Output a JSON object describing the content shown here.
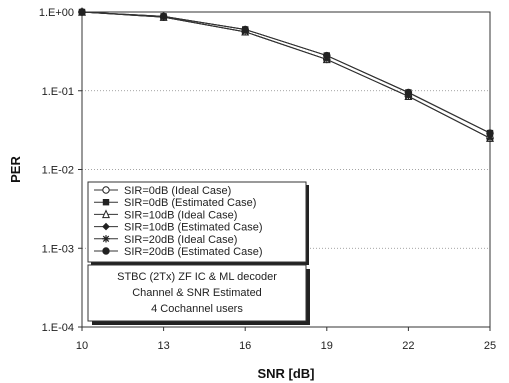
{
  "chart_data": {
    "type": "line",
    "title": "",
    "xlabel": "SNR [dB]",
    "ylabel": "PER",
    "x": [
      10,
      13,
      16,
      19,
      22,
      25
    ],
    "xlim": [
      10,
      25
    ],
    "x_ticks": [
      "10",
      "13",
      "16",
      "19",
      "22",
      "25"
    ],
    "ylim": [
      0.0001,
      1
    ],
    "y_scale": "log",
    "y_ticks": [
      "1.E+00",
      "1.E-01",
      "1.E-02",
      "1.E-03",
      "1.E-04"
    ],
    "grid": "horizontal-dotted",
    "legend_position": "lower-left",
    "series": [
      {
        "name": "SIR=0dB (Ideal Case)",
        "marker": "circle-open",
        "values": [
          1.0,
          0.86,
          0.56,
          0.25,
          0.085,
          0.025
        ]
      },
      {
        "name": "SIR=0dB (Estimated Case)",
        "marker": "square-filled",
        "values": [
          1.0,
          0.88,
          0.6,
          0.28,
          0.095,
          0.029
        ]
      },
      {
        "name": "SIR=10dB (Ideal Case)",
        "marker": "triangle-open",
        "values": [
          1.0,
          0.86,
          0.56,
          0.25,
          0.085,
          0.025
        ]
      },
      {
        "name": "SIR=10dB (Estimated Case)",
        "marker": "diamond-filled",
        "values": [
          1.0,
          0.88,
          0.6,
          0.28,
          0.095,
          0.029
        ]
      },
      {
        "name": "SIR=20dB (Ideal Case)",
        "marker": "star",
        "values": [
          1.0,
          0.86,
          0.56,
          0.25,
          0.085,
          0.025
        ]
      },
      {
        "name": "SIR=20dB (Estimated Case)",
        "marker": "circle-filled",
        "values": [
          1.0,
          0.88,
          0.6,
          0.28,
          0.095,
          0.029
        ]
      }
    ],
    "annotation": {
      "lines": [
        "STBC (2Tx) ZF IC  & ML decoder",
        "Channel & SNR Estimated",
        "4 Cochannel users"
      ]
    }
  }
}
